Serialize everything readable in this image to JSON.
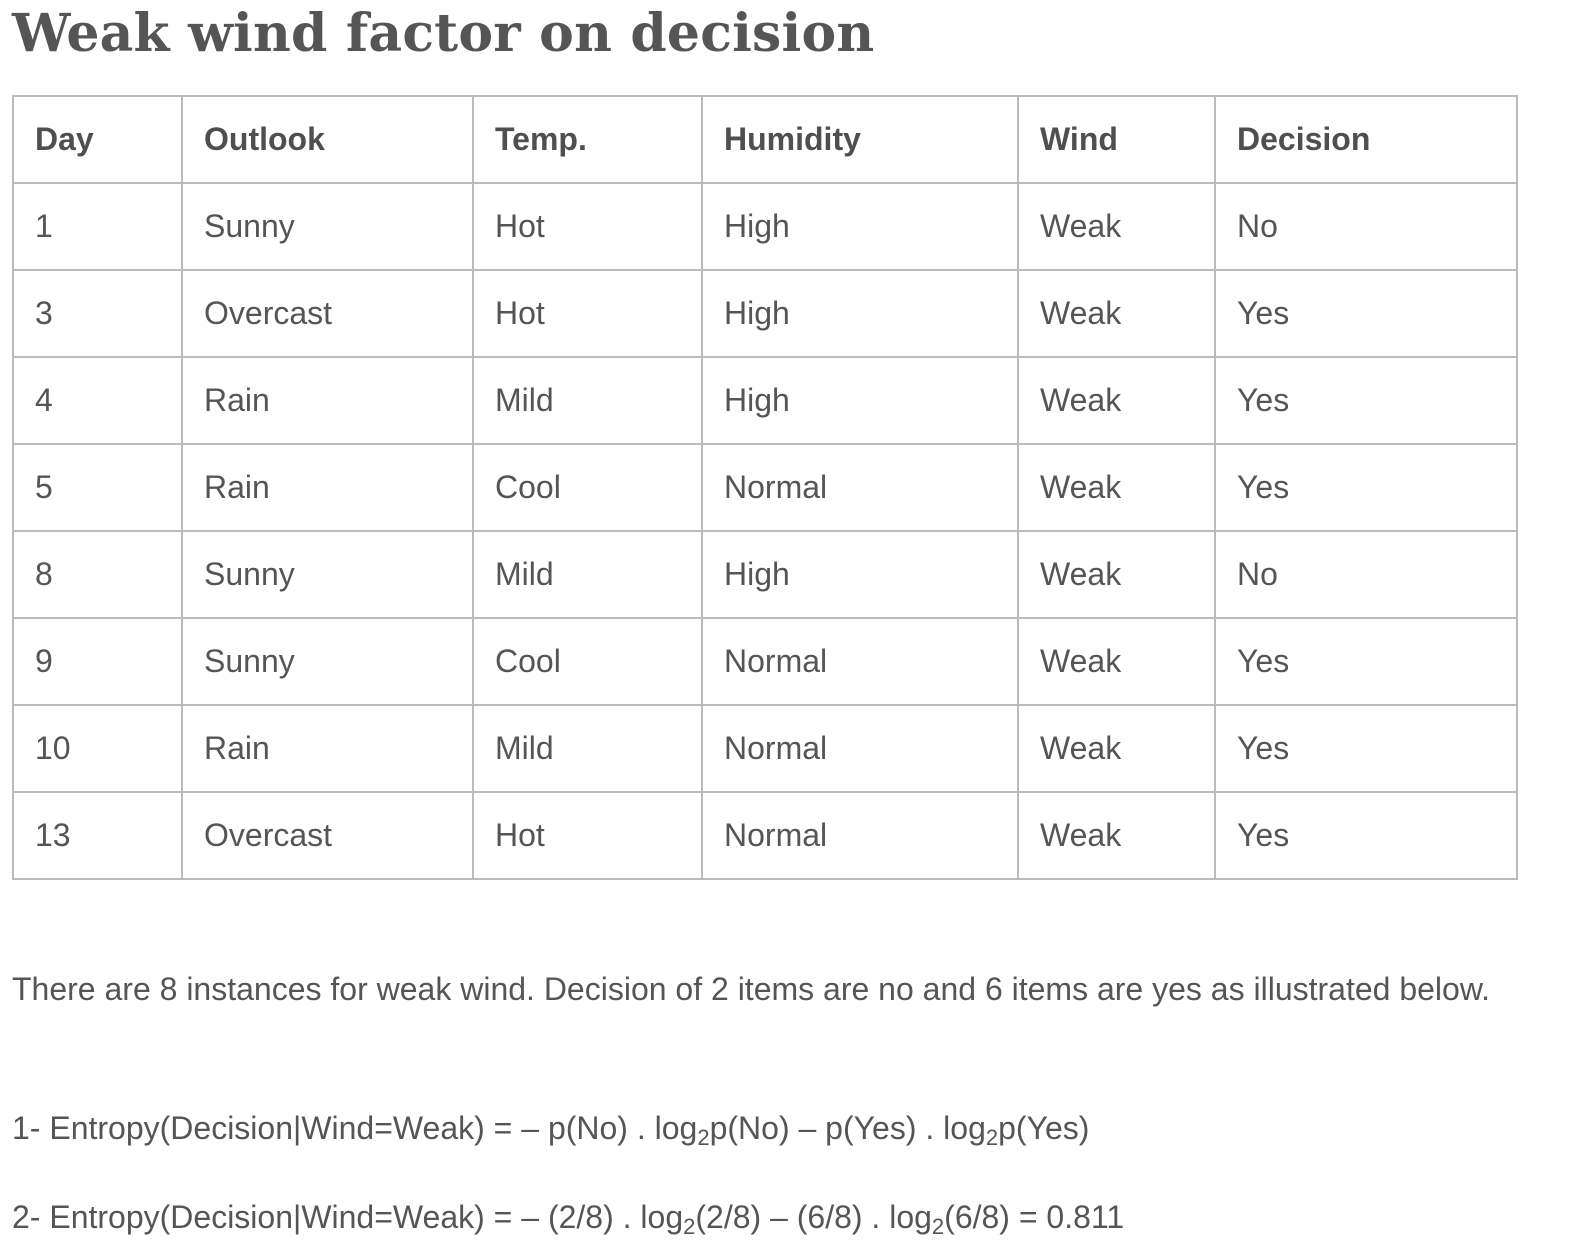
{
  "title": "Weak wind factor on decision",
  "table": {
    "headers": [
      "Day",
      "Outlook",
      "Temp.",
      "Humidity",
      "Wind",
      "Decision"
    ],
    "rows": [
      [
        "1",
        "Sunny",
        "Hot",
        "High",
        "Weak",
        "No"
      ],
      [
        "3",
        "Overcast",
        "Hot",
        "High",
        "Weak",
        "Yes"
      ],
      [
        "4",
        "Rain",
        "Mild",
        "High",
        "Weak",
        "Yes"
      ],
      [
        "5",
        "Rain",
        "Cool",
        "Normal",
        "Weak",
        "Yes"
      ],
      [
        "8",
        "Sunny",
        "Mild",
        "High",
        "Weak",
        "No"
      ],
      [
        "9",
        "Sunny",
        "Cool",
        "Normal",
        "Weak",
        "Yes"
      ],
      [
        "10",
        "Rain",
        "Mild",
        "Normal",
        "Weak",
        "Yes"
      ],
      [
        "13",
        "Overcast",
        "Hot",
        "Normal",
        "Weak",
        "Yes"
      ]
    ]
  },
  "paragraph": "There are 8 instances for weak wind. Decision of 2 items are no and 6 items are yes as illustrated below.",
  "formula1": {
    "part1": "1- Entropy(Decision|Wind=Weak) = – p(No) . log",
    "sub1": "2",
    "part2": "p(No) – p(Yes) . log",
    "sub2": "2",
    "part3": "p(Yes)"
  },
  "formula2": {
    "part1": "2- Entropy(Decision|Wind=Weak) = – (2/8) . log",
    "sub1": "2",
    "part2": "(2/8) – (6/8) . log",
    "sub2": "2",
    "part3": "(6/8) = 0.811"
  }
}
